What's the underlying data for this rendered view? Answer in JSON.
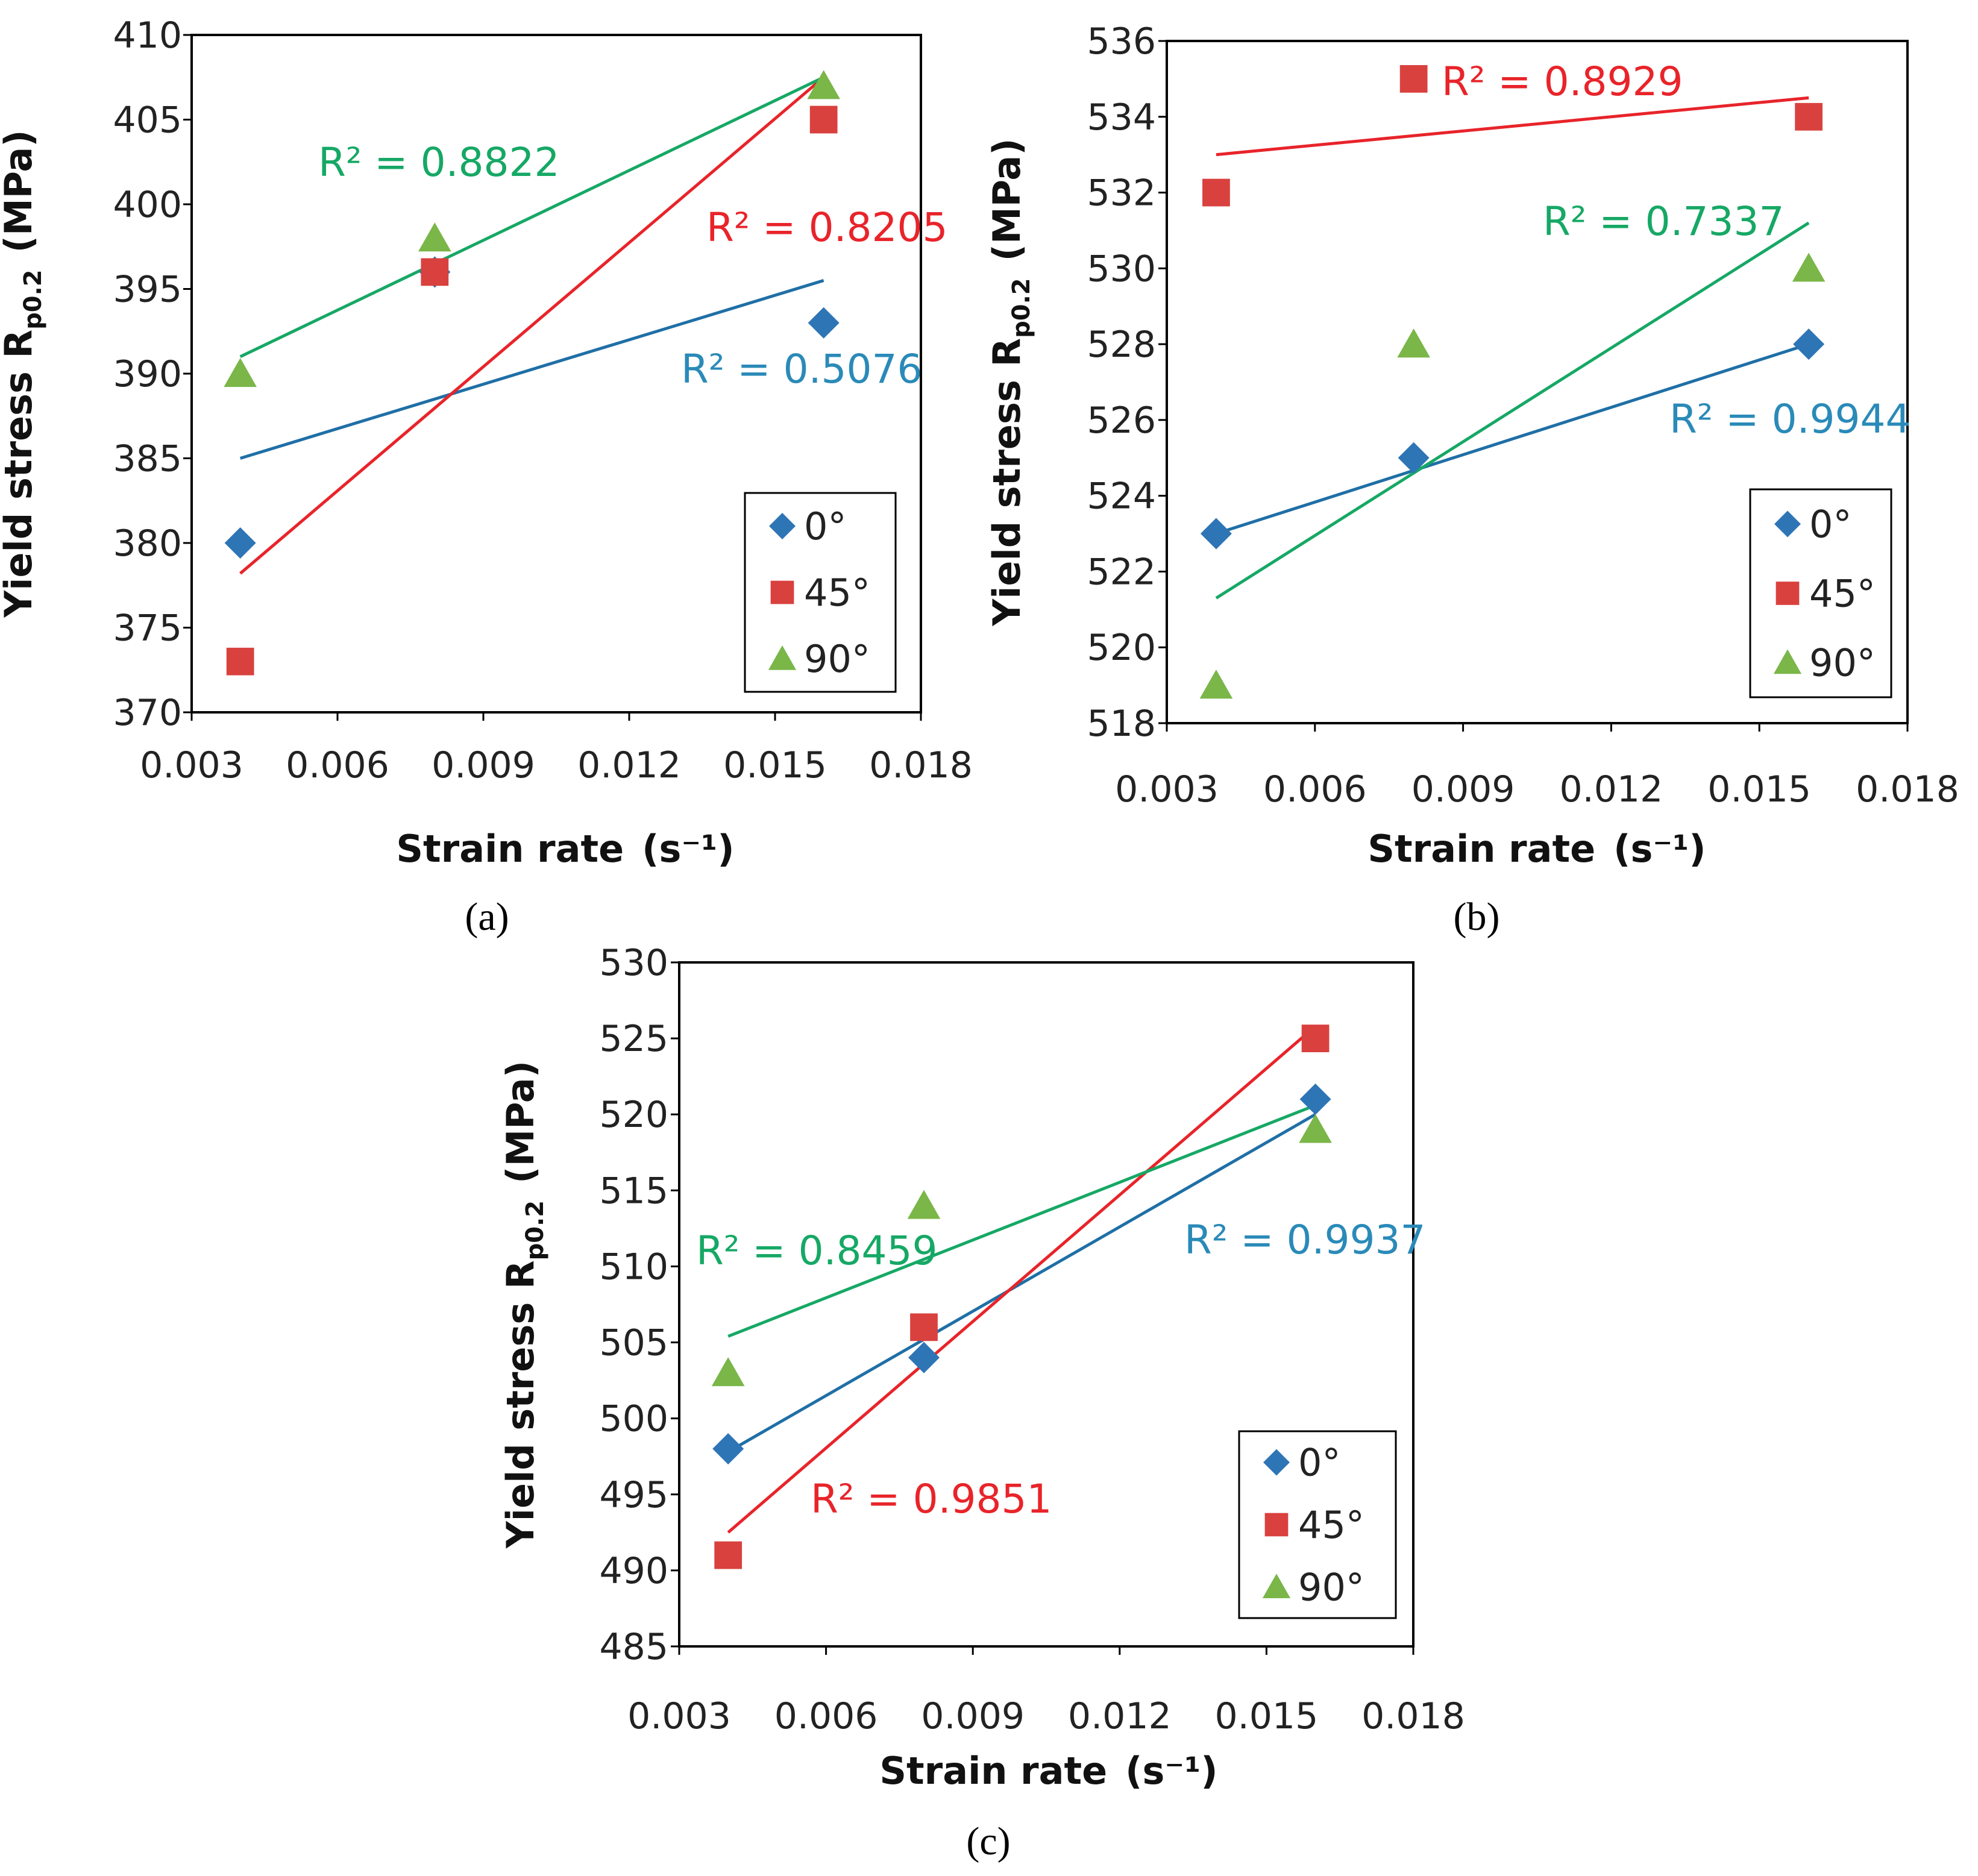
{
  "colors": {
    "deg0": "#2e75b6",
    "deg45": "#d9413e",
    "deg90": "#7ab648",
    "line0": "#1f6fa6",
    "line45": "#e8242a",
    "line90": "#16a865",
    "r2_0": "#2a8ab8",
    "r2_45": "#e8242a",
    "r2_90": "#16a865"
  },
  "chart_data": [
    {
      "type": "scatter",
      "panel": "(a)",
      "xlabel": "Strain rate",
      "xunit": "(s⁻¹)",
      "ylabel": "Yield stress R",
      "ylabel_sub": "p0.2",
      "yunit": "(MPa)",
      "xlim": [
        0.003,
        0.018
      ],
      "ylim": [
        370,
        410
      ],
      "xticks": [
        0.003,
        0.006,
        0.009,
        0.012,
        0.015,
        0.018
      ],
      "xtick_labels": [
        "0.003",
        "0.006",
        "0.009",
        "0.012",
        "0.015",
        "0.018"
      ],
      "yticks": [
        370,
        375,
        380,
        385,
        390,
        395,
        400,
        405,
        410
      ],
      "ytick_labels": [
        "370",
        "375",
        "380",
        "385",
        "390",
        "395",
        "400",
        "405",
        "410"
      ],
      "x": [
        0.004,
        0.008,
        0.016
      ],
      "series": [
        {
          "name": "0°",
          "marker": "diamond",
          "values": [
            380,
            396,
            393
          ],
          "trend": [
            385.0,
            395.5
          ],
          "r2": "R² = 0.5076"
        },
        {
          "name": "45°",
          "marker": "square",
          "values": [
            373,
            396,
            405
          ],
          "trend": [
            378.2,
            407.5
          ],
          "r2": "R² = 0.8205"
        },
        {
          "name": "90°",
          "marker": "triangle",
          "values": [
            390,
            398,
            407
          ],
          "trend": [
            391.0,
            407.5
          ],
          "r2": "R² = 0.8822"
        }
      ],
      "legend": [
        "0°",
        "45°",
        "90°"
      ],
      "legend_position": "bottom-right"
    },
    {
      "type": "scatter",
      "panel": "(b)",
      "xlabel": "Strain rate",
      "xunit": "(s⁻¹)",
      "ylabel": "Yield stress R",
      "ylabel_sub": "p0.2",
      "yunit": "(MPa)",
      "xlim": [
        0.003,
        0.018
      ],
      "ylim": [
        518,
        536
      ],
      "xticks": [
        0.003,
        0.006,
        0.009,
        0.012,
        0.015,
        0.018
      ],
      "xtick_labels": [
        "0.003",
        "0.006",
        "0.009",
        "0.012",
        "0.015",
        "0.018"
      ],
      "yticks": [
        518,
        520,
        522,
        524,
        526,
        528,
        530,
        532,
        534,
        536
      ],
      "ytick_labels": [
        "518",
        "520",
        "522",
        "524",
        "526",
        "528",
        "530",
        "532",
        "534",
        "536"
      ],
      "x": [
        0.004,
        0.008,
        0.016
      ],
      "series": [
        {
          "name": "0°",
          "marker": "diamond",
          "values": [
            523,
            525,
            528
          ],
          "trend": [
            523.0,
            528.0
          ],
          "r2": "R² = 0.9944"
        },
        {
          "name": "45°",
          "marker": "square",
          "values": [
            532,
            535,
            534
          ],
          "trend": [
            533.0,
            534.5
          ],
          "r2": "R² = 0.8929"
        },
        {
          "name": "90°",
          "marker": "triangle",
          "values": [
            519,
            528,
            530
          ],
          "trend": [
            521.3,
            531.2
          ],
          "r2": "R² = 0.7337"
        }
      ],
      "legend": [
        "0°",
        "45°",
        "90°"
      ],
      "legend_position": "bottom-right"
    },
    {
      "type": "scatter",
      "panel": "(c)",
      "xlabel": "Strain rate",
      "xunit": "(s⁻¹)",
      "ylabel": "Yield stress R",
      "ylabel_sub": "p0.2",
      "yunit": "(MPa)",
      "xlim": [
        0.003,
        0.018
      ],
      "ylim": [
        485,
        530
      ],
      "xticks": [
        0.003,
        0.006,
        0.009,
        0.012,
        0.015,
        0.018
      ],
      "xtick_labels": [
        "0.003",
        "0.006",
        "0.009",
        "0.012",
        "0.015",
        "0.018"
      ],
      "yticks": [
        485,
        490,
        495,
        500,
        505,
        510,
        515,
        520,
        525,
        530
      ],
      "ytick_labels": [
        "485",
        "490",
        "495",
        "500",
        "505",
        "510",
        "515",
        "520",
        "525",
        "530"
      ],
      "x": [
        0.004,
        0.008,
        0.016
      ],
      "series": [
        {
          "name": "0°",
          "marker": "diamond",
          "values": [
            498,
            504,
            521
          ],
          "trend": [
            497.8,
            520.0
          ],
          "r2": "R² = 0.9937"
        },
        {
          "name": "45°",
          "marker": "square",
          "values": [
            491,
            506,
            525
          ],
          "trend": [
            492.5,
            525.8
          ],
          "r2": "R² = 0.9851"
        },
        {
          "name": "90°",
          "marker": "triangle",
          "values": [
            503,
            514,
            519
          ],
          "trend": [
            505.4,
            520.6
          ],
          "r2": "R² = 0.8459"
        }
      ],
      "legend": [
        "0°",
        "45°",
        "90°"
      ],
      "legend_position": "bottom-right"
    }
  ]
}
